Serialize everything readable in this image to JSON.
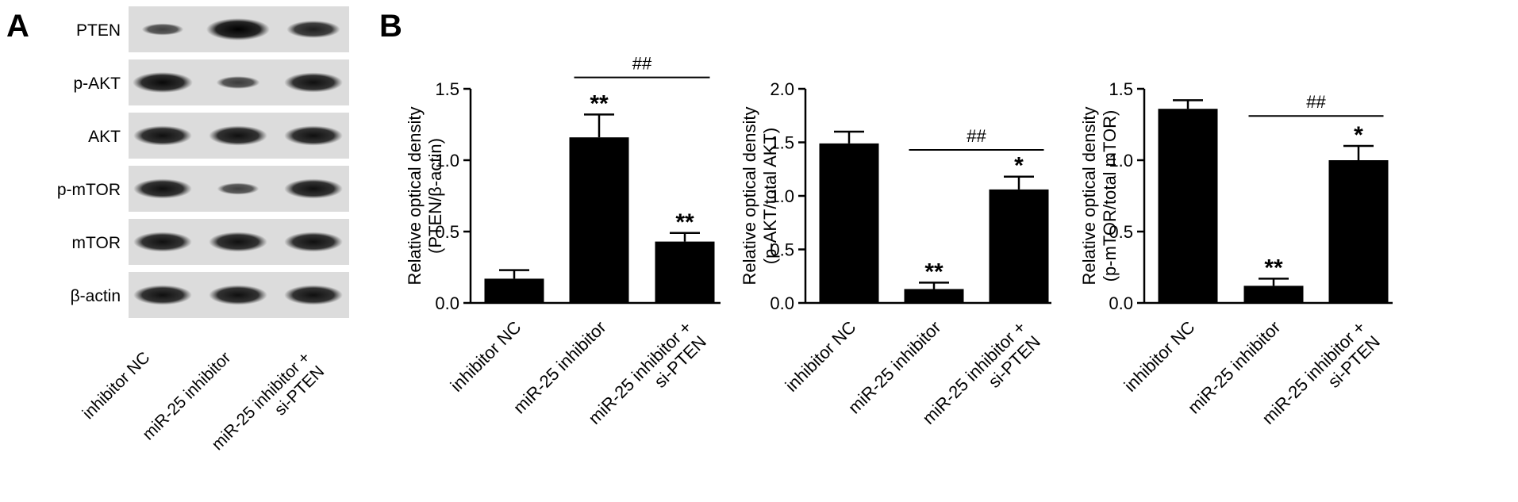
{
  "panels": {
    "a_label": "A",
    "b_label": "B"
  },
  "blot": {
    "proteins": [
      "PTEN",
      "p-AKT",
      "AKT",
      "p-mTOR",
      "mTOR",
      "β-actin"
    ],
    "lanes": [
      [
        "inhibitor NC"
      ],
      [
        "miR-25 inhibitor"
      ],
      [
        "miR-25 inhibitor +",
        "si-PTEN"
      ]
    ],
    "band_intensity": [
      [
        0.35,
        1.0,
        0.7
      ],
      [
        0.9,
        0.4,
        0.85
      ],
      [
        0.85,
        0.85,
        0.85
      ],
      [
        0.85,
        0.35,
        0.85
      ],
      [
        0.85,
        0.85,
        0.85
      ],
      [
        0.85,
        0.85,
        0.85
      ]
    ]
  },
  "chart_data": [
    {
      "type": "bar",
      "categories": [
        [
          "inhibitor NC"
        ],
        [
          "miR-25 inhibitor"
        ],
        [
          "miR-25 inhibitor +",
          "si-PTEN"
        ]
      ],
      "values": [
        0.17,
        1.16,
        0.43
      ],
      "errors": [
        0.06,
        0.16,
        0.06
      ],
      "ylabel": [
        "Relative optical density",
        "(PTEN/β-actin)"
      ],
      "ylim": [
        0,
        1.5
      ],
      "yticks": [
        "0.0",
        "0.5",
        "1.0",
        "1.5"
      ],
      "significance": [
        "",
        "**",
        "**"
      ],
      "comparison": {
        "from": 1,
        "to": 2,
        "label": "##",
        "y": 1.58
      },
      "color": "#000000"
    },
    {
      "type": "bar",
      "categories": [
        [
          "inhibitor NC"
        ],
        [
          "miR-25 inhibitor"
        ],
        [
          "miR-25 inhibitor +",
          "si-PTEN"
        ]
      ],
      "values": [
        1.49,
        0.13,
        1.06
      ],
      "errors": [
        0.11,
        0.06,
        0.12
      ],
      "ylabel": [
        "Relative optical density",
        "(p-AKT/total AKT)"
      ],
      "ylim": [
        0,
        2.0
      ],
      "yticks": [
        "0.0",
        "0.5",
        "1.0",
        "1.5",
        "2.0"
      ],
      "significance": [
        "",
        "**",
        "*"
      ],
      "comparison": {
        "from": 1,
        "to": 2,
        "label": "##",
        "y": 1.43
      },
      "color": "#000000"
    },
    {
      "type": "bar",
      "categories": [
        [
          "inhibitor NC"
        ],
        [
          "miR-25 inhibitor"
        ],
        [
          "miR-25 inhibitor +",
          "si-PTEN"
        ]
      ],
      "values": [
        1.36,
        0.12,
        1.0
      ],
      "errors": [
        0.06,
        0.05,
        0.1
      ],
      "ylabel": [
        "Relative optical density",
        "(p-mTOR/total mTOR)"
      ],
      "ylim": [
        0,
        1.5
      ],
      "yticks": [
        "0.0",
        "0.5",
        "1.0",
        "1.5"
      ],
      "significance": [
        "",
        "**",
        "*"
      ],
      "comparison": {
        "from": 1,
        "to": 2,
        "label": "##",
        "y": 1.31
      },
      "color": "#000000"
    }
  ]
}
